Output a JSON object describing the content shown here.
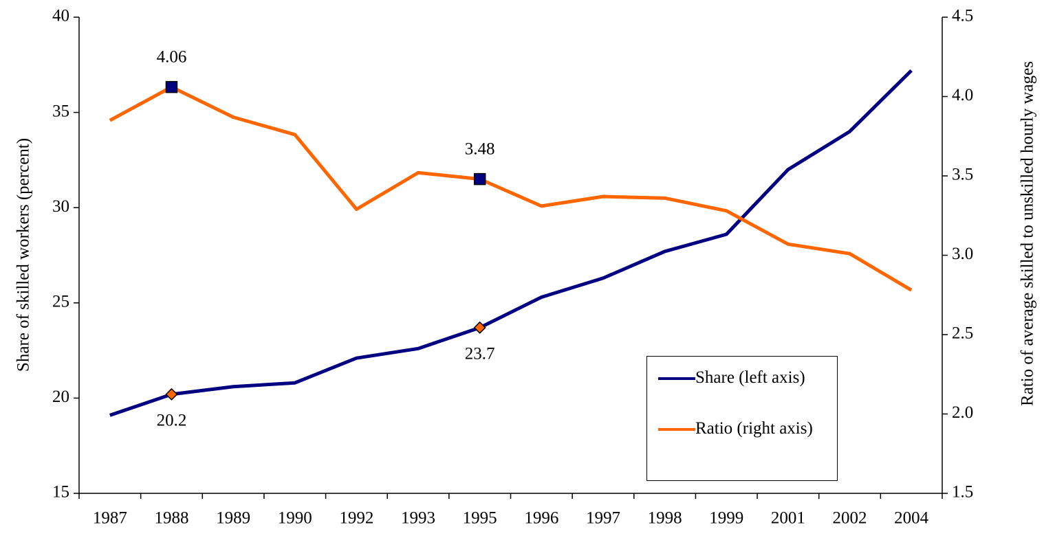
{
  "chart_data": {
    "type": "line",
    "categories": [
      "1987",
      "1988",
      "1989",
      "1990",
      "1992",
      "1993",
      "1995",
      "1996",
      "1997",
      "1998",
      "1999",
      "2001",
      "2002",
      "2004"
    ],
    "series": [
      {
        "name": "Share (left axis)",
        "color": "#000080",
        "marker_color": "#ff6600",
        "marker": "diamond",
        "values": [
          19.1,
          20.2,
          20.6,
          20.8,
          22.1,
          22.6,
          23.7,
          25.3,
          26.3,
          27.7,
          28.6,
          32.0,
          34.0,
          37.2
        ],
        "value_labels": [
          null,
          "20.2",
          null,
          null,
          null,
          null,
          "23.7",
          null,
          null,
          null,
          null,
          null,
          null,
          null
        ]
      },
      {
        "name": "Ratio (right axis)",
        "color": "#ff6600",
        "marker_color": "#000080",
        "marker": "square",
        "axis": "y2",
        "values": [
          3.85,
          4.06,
          3.87,
          3.76,
          3.29,
          3.52,
          3.48,
          3.31,
          3.37,
          3.36,
          3.28,
          3.07,
          3.01,
          2.78
        ],
        "value_labels": [
          null,
          "4.06",
          null,
          null,
          null,
          null,
          "3.48",
          null,
          null,
          null,
          null,
          null,
          null,
          null
        ]
      }
    ],
    "ylabel": "Share of skilled workers (percent)",
    "y2label": "Ratio of average skilled to unskilled hourly wages",
    "ylim": [
      15,
      40
    ],
    "yticks": [
      15,
      20,
      25,
      30,
      35,
      40
    ],
    "y2lim": [
      1.5,
      4.5
    ],
    "y2ticks": [
      1.5,
      {
        "value": 2,
        "label": "2.0"
      },
      2.5,
      {
        "value": 3,
        "label": "3.0"
      },
      3.5,
      {
        "value": 4,
        "label": "4.0"
      },
      4.5
    ],
    "grid": false,
    "legend": "lower right"
  }
}
